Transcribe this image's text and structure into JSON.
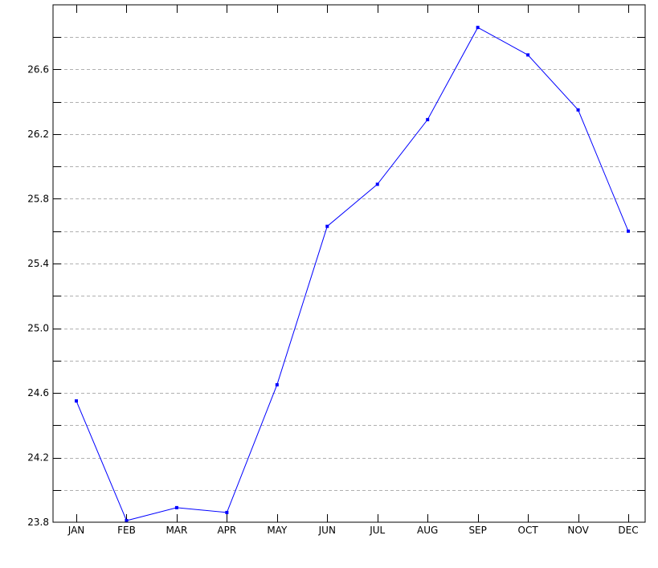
{
  "chart_data": {
    "type": "line",
    "title": "",
    "xlabel": "",
    "ylabel": "",
    "categories": [
      "JAN",
      "FEB",
      "MAR",
      "APR",
      "MAY",
      "JUN",
      "JUL",
      "AUG",
      "SEP",
      "OCT",
      "NOV",
      "DEC"
    ],
    "series": [
      {
        "color": "#0000ff",
        "marker": "square",
        "values": [
          24.55,
          23.81,
          23.89,
          23.86,
          24.65,
          25.63,
          25.89,
          26.29,
          26.86,
          26.69,
          26.35,
          25.6
        ]
      }
    ],
    "ylim": [
      23.8,
      27.0
    ],
    "yticks": [
      23.8,
      24.2,
      24.6,
      25.0,
      25.4,
      25.8,
      26.2,
      26.6
    ],
    "ytick_labels": [
      "23.8",
      "24.2",
      "24.6",
      "25.0",
      "25.4",
      "25.8",
      "26.2",
      "26.6"
    ],
    "grid": true,
    "grid_style": "dashed",
    "legend": "none"
  }
}
